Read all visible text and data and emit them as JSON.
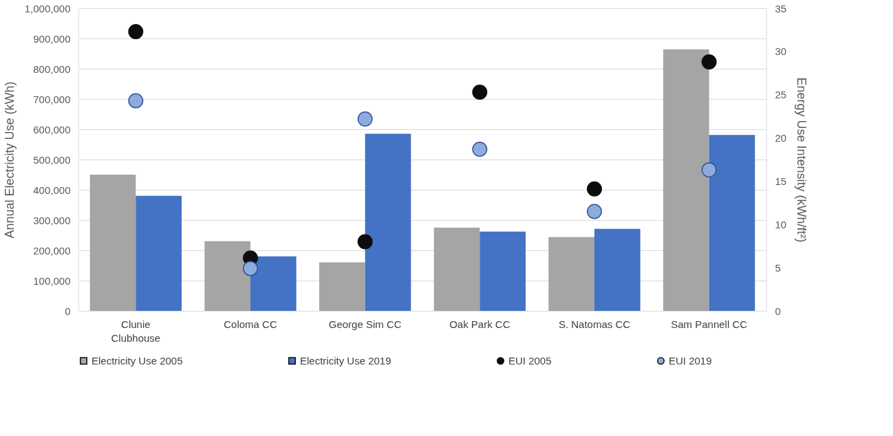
{
  "chart_data": {
    "type": "bar",
    "ylabel": "Annual Electricity Use (kWh)",
    "y2label": "Energy Use Intensity (kWh/ft²)",
    "categories": [
      "Clunie Clubhouse",
      "Coloma CC",
      "George Sim CC",
      "Oak Park CC",
      "S. Natomas CC",
      "Sam Pannell CC"
    ],
    "series": [
      {
        "name": "Electricity Use 2005",
        "color": "#a5a5a5",
        "values": [
          450000,
          230000,
          160000,
          275000,
          244000,
          864000
        ]
      },
      {
        "name": "Electricity Use 2019",
        "color": "#4472c4",
        "values": [
          380000,
          180000,
          585000,
          262000,
          271000,
          581000
        ]
      },
      {
        "name": "EUI 2005",
        "type": "scatter",
        "axis": "y2",
        "color": "#0d0d0d",
        "values": [
          32.3,
          6.1,
          8.0,
          25.3,
          14.1,
          28.8
        ]
      },
      {
        "name": "EUI 2019",
        "type": "scatter",
        "axis": "y2",
        "color": "#8faadc",
        "values": [
          24.3,
          4.9,
          22.2,
          18.7,
          11.5,
          16.3
        ]
      }
    ],
    "ylim": [
      0,
      1000000
    ],
    "yticks": [
      0,
      {
        "value": 100000,
        "label": "100,000"
      },
      {
        "value": 200000,
        "label": "200,000"
      },
      {
        "value": 300000,
        "label": "300,000"
      },
      {
        "value": 400000,
        "label": "400,000"
      },
      {
        "value": 500000,
        "label": "500,000"
      },
      {
        "value": 600000,
        "label": "600,000"
      },
      {
        "value": 700000,
        "label": "700,000"
      },
      {
        "value": 800000,
        "label": "800,000"
      },
      {
        "value": 900000,
        "label": "900,000"
      },
      {
        "value": 1000000,
        "label": "1,000,000"
      }
    ],
    "y2lim": [
      0,
      35
    ],
    "y2ticks": [
      0,
      5,
      10,
      15,
      20,
      25,
      30,
      35
    ],
    "grid": "y",
    "legend": "bottom",
    "marker": "circle"
  }
}
